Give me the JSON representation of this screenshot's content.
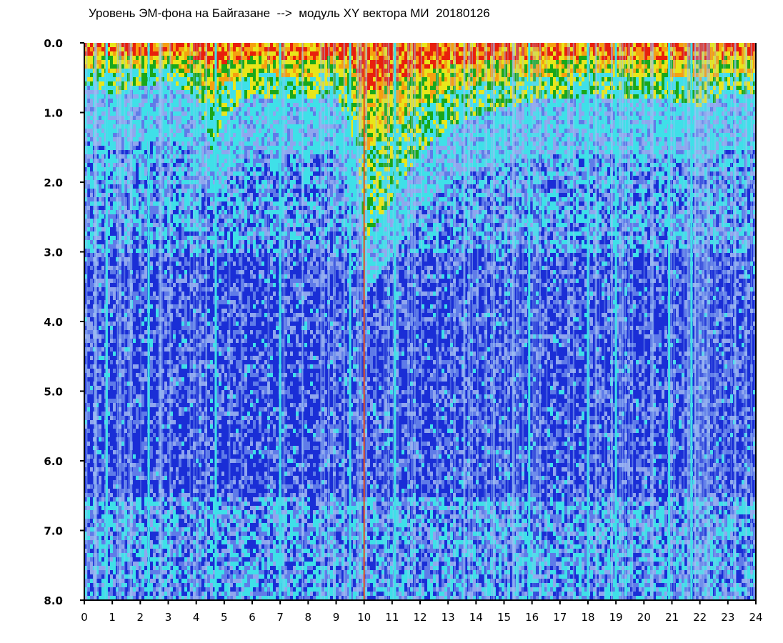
{
  "chart_data": {
    "type": "heatmap",
    "title": "Уровень ЭМ-фона на Байгазане  -->  модуль XY вектора МИ  20180126",
    "xlabel": "",
    "ylabel": "",
    "xlim": [
      0,
      24
    ],
    "ylim": [
      0,
      8
    ],
    "y_inverted": true,
    "x_ticks": [
      "0",
      "1",
      "2",
      "3",
      "4",
      "5",
      "6",
      "7",
      "8",
      "9",
      "10",
      "11",
      "12",
      "13",
      "14",
      "15",
      "16",
      "17",
      "18",
      "19",
      "20",
      "21",
      "22",
      "23",
      "24"
    ],
    "y_ticks": [
      "0.0",
      "1.0",
      "2.0",
      "3.0",
      "4.0",
      "5.0",
      "6.0",
      "7.0",
      "8.0"
    ],
    "colorscale": [
      "#1a2ed6",
      "#5f7be8",
      "#8fa6ee",
      "#3fe0e8",
      "#1aa81a",
      "#e8e61a",
      "#f5a010",
      "#e8200c"
    ],
    "grid": false,
    "legend": "none",
    "bright_band_depth": [
      {
        "hour": 0.0,
        "depth": 0.6
      },
      {
        "hour": 1.0,
        "depth": 0.7
      },
      {
        "hour": 2.0,
        "depth": 0.6
      },
      {
        "hour": 3.0,
        "depth": 0.5
      },
      {
        "hour": 4.0,
        "depth": 0.8
      },
      {
        "hour": 4.5,
        "depth": 1.5
      },
      {
        "hour": 5.0,
        "depth": 1.0
      },
      {
        "hour": 6.0,
        "depth": 0.7
      },
      {
        "hour": 7.0,
        "depth": 0.8
      },
      {
        "hour": 8.0,
        "depth": 0.8
      },
      {
        "hour": 9.0,
        "depth": 0.7
      },
      {
        "hour": 9.7,
        "depth": 1.6
      },
      {
        "hour": 10.0,
        "depth": 2.8
      },
      {
        "hour": 10.5,
        "depth": 2.5
      },
      {
        "hour": 11.0,
        "depth": 2.2
      },
      {
        "hour": 12.0,
        "depth": 1.5
      },
      {
        "hour": 13.0,
        "depth": 1.2
      },
      {
        "hour": 14.0,
        "depth": 1.0
      },
      {
        "hour": 15.0,
        "depth": 0.9
      },
      {
        "hour": 16.0,
        "depth": 0.8
      },
      {
        "hour": 17.0,
        "depth": 0.8
      },
      {
        "hour": 18.0,
        "depth": 0.7
      },
      {
        "hour": 19.0,
        "depth": 0.8
      },
      {
        "hour": 20.0,
        "depth": 0.8
      },
      {
        "hour": 21.0,
        "depth": 0.8
      },
      {
        "hour": 22.0,
        "depth": 0.9
      },
      {
        "hour": 23.0,
        "depth": 0.7
      },
      {
        "hour": 24.0,
        "depth": 0.7
      }
    ],
    "strong_vertical_lines_hours": [
      0.8,
      2.3,
      4.7,
      7.0,
      9.5,
      10.0,
      11.1,
      15.9,
      18.0,
      19.0,
      20.9,
      21.7
    ]
  }
}
